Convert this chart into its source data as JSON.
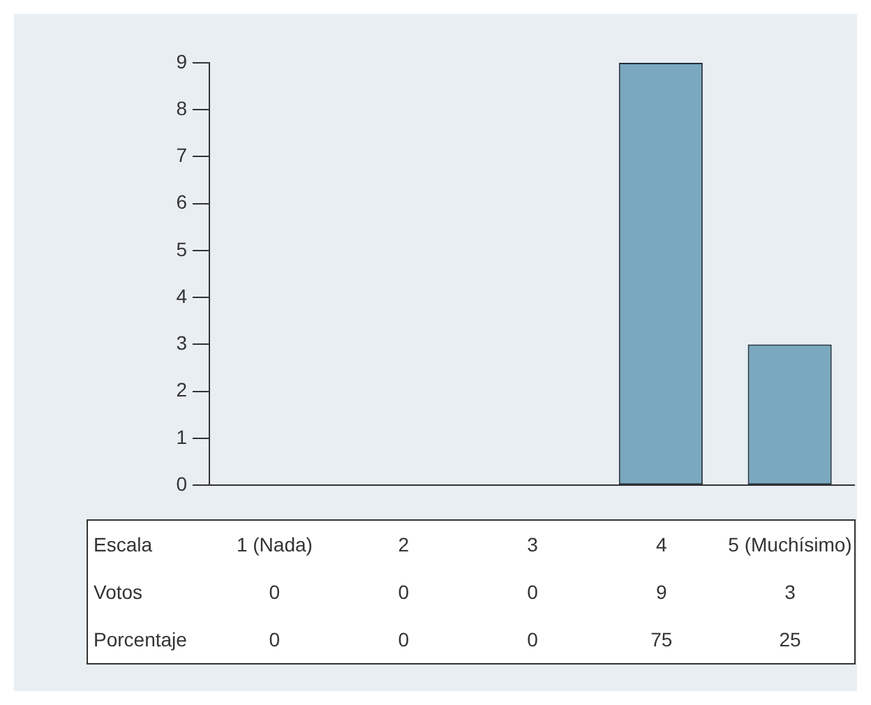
{
  "chart_data": {
    "type": "bar",
    "xlabel": "Escala",
    "categories": [
      "1 (Nada)",
      "2",
      "3",
      "4",
      "5 (Muchísimo)"
    ],
    "series": [
      {
        "name": "Votos",
        "color": "#7aa8bf",
        "values": [
          0,
          0,
          0,
          9,
          3
        ]
      }
    ],
    "ylim": [
      0,
      9
    ],
    "yticks": [
      0,
      1,
      2,
      3,
      4,
      5,
      6,
      7,
      8,
      9
    ],
    "grid": false,
    "legend": false,
    "data_labels": true,
    "annotations": [
      "Porcentaje",
      "0",
      "0",
      "0",
      "75",
      "25"
    ]
  }
}
